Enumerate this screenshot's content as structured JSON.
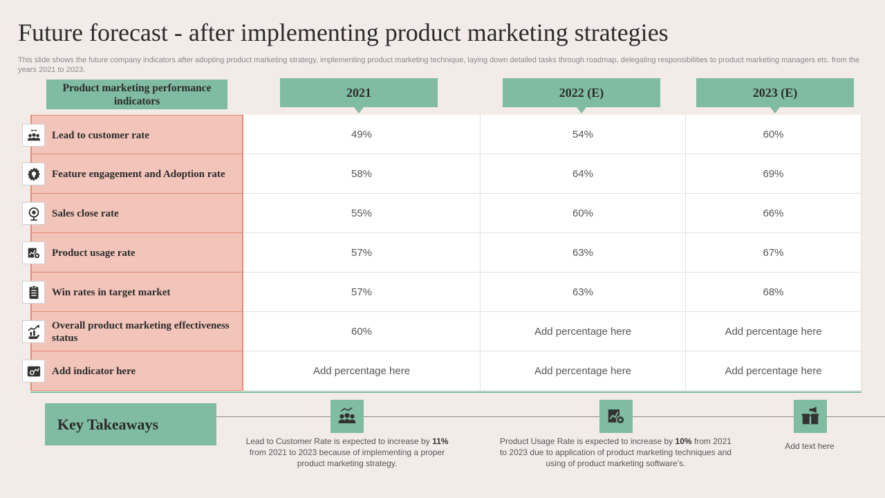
{
  "title": "Future forecast - after implementing product marketing strategies",
  "subtitle": "This slide shows the future company indicators after adopting product marketing strategy, implementing product marketing technique, laying down detailed tasks through roadmap, delegating responsibilities to product marketing managers etc. from the years 2021 to 2023.",
  "table": {
    "label_header": "Product marketing performance indicators",
    "columns": [
      "2021",
      "2022 (E)",
      "2023 (E)"
    ],
    "rows": [
      {
        "icon": "people-network-icon",
        "label": "Lead to customer rate",
        "values": [
          "49%",
          "54%",
          "60%"
        ]
      },
      {
        "icon": "lightbulb-gear-icon",
        "label": "Feature engagement  and Adoption rate",
        "values": [
          "58%",
          "64%",
          "69%"
        ]
      },
      {
        "icon": "globe-target-icon",
        "label": "Sales close rate",
        "values": [
          "55%",
          "60%",
          "66%"
        ]
      },
      {
        "icon": "chart-gear-icon",
        "label": "Product usage rate",
        "values": [
          "57%",
          "63%",
          "67%"
        ]
      },
      {
        "icon": "clipboard-list-icon",
        "label": "Win rates in target market",
        "values": [
          "57%",
          "63%",
          "68%"
        ]
      },
      {
        "icon": "growth-hand-icon",
        "label": "Overall product marketing effectiveness status",
        "values": [
          "60%",
          "Add percentage here",
          "Add percentage here"
        ]
      },
      {
        "icon": "analytics-person-icon",
        "label": "Add indicator here",
        "values": [
          "Add percentage here",
          "Add percentage here",
          "Add percentage here"
        ]
      }
    ]
  },
  "takeaways": {
    "title": "Key Takeaways",
    "items": [
      {
        "icon": "people-network-icon",
        "pre": "Lead to Customer Rate is expected to increase by ",
        "bold": "11%",
        "post": " from 2021 to 2023 because of implementing a proper product marketing strategy."
      },
      {
        "icon": "chart-gear-icon",
        "pre": "Product Usage Rate is expected to increase by ",
        "bold": "10%",
        "post": " from 2021 to 2023 due to application of product marketing techniques and using of product marketing software’s."
      },
      {
        "icon": "box-megaphone-icon",
        "text": "Add text here"
      }
    ]
  },
  "colors": {
    "accent": "#80bca2",
    "label_bg": "#f2c4ba",
    "label_border": "#e58a73",
    "background": "#f3ebe8"
  }
}
